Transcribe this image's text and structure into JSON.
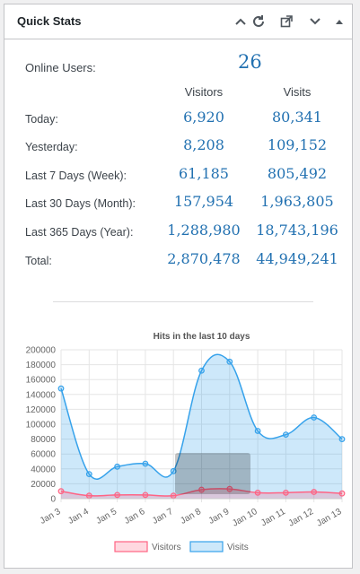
{
  "widget": {
    "title": "Quick Stats",
    "icons": [
      "chevron-up-icon",
      "refresh-icon",
      "external-link-icon",
      "chevron-down-icon",
      "triangle-up-icon"
    ]
  },
  "online": {
    "label": "Online Users:",
    "value": "26"
  },
  "columns": {
    "visitors": "Visitors",
    "visits": "Visits"
  },
  "rows": [
    {
      "label": "Today:",
      "visitors": "6,920",
      "visits": "80,341"
    },
    {
      "label": "Yesterday:",
      "visitors": "8,208",
      "visits": "109,152"
    },
    {
      "label": "Last 7 Days (Week):",
      "visitors": "61,185",
      "visits": "805,492"
    },
    {
      "label": "Last 30 Days (Month):",
      "visitors": "157,954",
      "visits": "1,963,805"
    },
    {
      "label": "Last 365 Days (Year):",
      "visitors": "1,288,980",
      "visits": "18,743,196"
    },
    {
      "label": "Total:",
      "visitors": "2,870,478",
      "visits": "44,949,241"
    }
  ],
  "chart_data": {
    "type": "area",
    "title": "Hits in the last 10 days",
    "categories": [
      "Jan 3",
      "Jan 4",
      "Jan 5",
      "Jan 6",
      "Jan 7",
      "Jan 8",
      "Jan 9",
      "Jan 10",
      "Jan 11",
      "Jan 12",
      "Jan 13"
    ],
    "series": [
      {
        "name": "Visitors",
        "color": "#ff6384",
        "values": [
          10000,
          4000,
          5000,
          5000,
          4000,
          12000,
          13000,
          8000,
          8000,
          9000,
          7000
        ]
      },
      {
        "name": "Visits",
        "color": "#36a2eb",
        "values": [
          148000,
          33000,
          43000,
          47000,
          37000,
          172000,
          184000,
          91000,
          86000,
          109000,
          80000
        ]
      }
    ],
    "ylim": [
      0,
      200000
    ],
    "yticks": [
      "0",
      "20000",
      "40000",
      "60000",
      "80000",
      "100000",
      "120000",
      "140000",
      "160000",
      "180000",
      "200000"
    ],
    "grid": true,
    "legend": "bottom"
  }
}
